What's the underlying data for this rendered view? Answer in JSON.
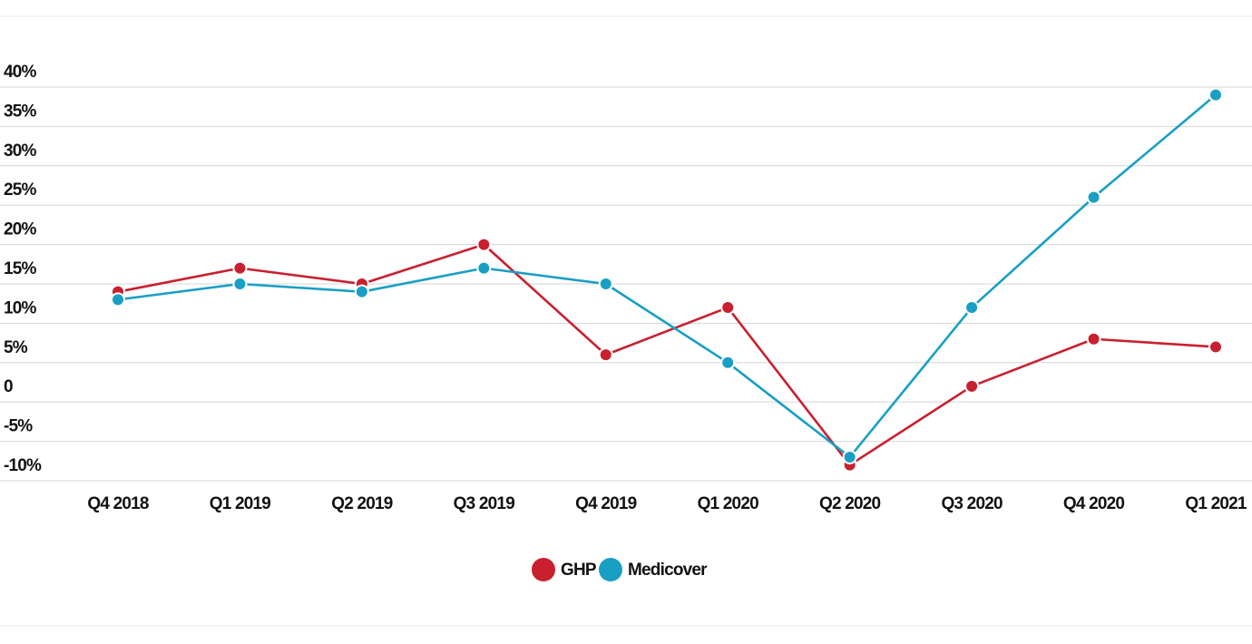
{
  "chart_data": {
    "type": "line",
    "categories": [
      "Q4 2018",
      "Q1 2019",
      "Q2 2019",
      "Q3 2019",
      "Q4 2019",
      "Q1 2020",
      "Q2 2020",
      "Q3 2020",
      "Q4 2020",
      "Q1 2021"
    ],
    "series": [
      {
        "name": "GHP",
        "color": "#c8202f",
        "values": [
          14,
          17,
          15,
          20,
          6,
          12,
          -8,
          2,
          8,
          7
        ]
      },
      {
        "name": "Medicover",
        "color": "#1a9fc4",
        "values": [
          13,
          15,
          14,
          17,
          15,
          5,
          -7,
          12,
          26,
          39
        ]
      }
    ],
    "ylim": [
      -10,
      40
    ],
    "yticks": [
      {
        "value": -10,
        "label": "-10%"
      },
      {
        "value": -5,
        "label": "-5%"
      },
      0,
      {
        "value": 5,
        "label": "5%"
      },
      {
        "value": 10,
        "label": "10%"
      },
      {
        "value": 15,
        "label": "15%"
      },
      {
        "value": 20,
        "label": "20%"
      },
      {
        "value": 25,
        "label": "25%"
      },
      {
        "value": 30,
        "label": "30%"
      },
      {
        "value": 35,
        "label": "35%"
      },
      {
        "value": 40,
        "label": "40%"
      }
    ],
    "grid": true,
    "legend": "bottom"
  }
}
